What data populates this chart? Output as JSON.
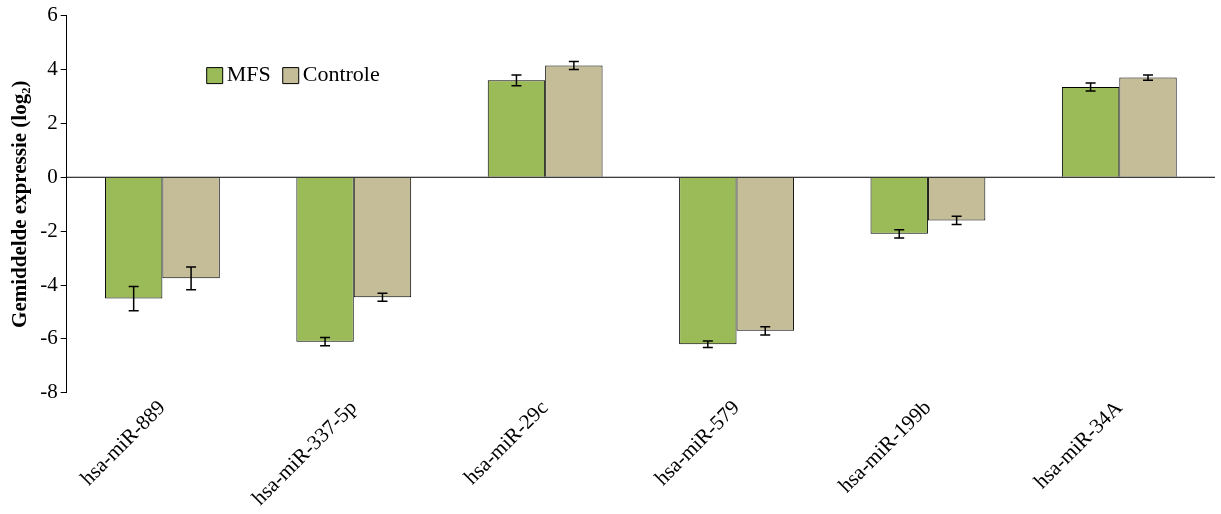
{
  "chart_data": {
    "type": "bar",
    "ylabel": "Gemiddelde expressie (log₂)",
    "categories": [
      "hsa-miR-889",
      "hsa-miR-337-5p",
      "hsa-miR-29c",
      "hsa-miR-579",
      "hsa-miR-199b",
      "hsa-miR-34A"
    ],
    "series": [
      {
        "name": "MFS",
        "color": "#9bbb59",
        "values": [
          -4.5,
          -6.1,
          3.6,
          -6.2,
          -2.1,
          3.35
        ],
        "errors": [
          0.45,
          0.15,
          0.2,
          0.12,
          0.15,
          0.15
        ]
      },
      {
        "name": "Controle",
        "color": "#c4bd97",
        "values": [
          -3.75,
          -4.45,
          4.15,
          -5.7,
          -1.6,
          3.7
        ],
        "errors": [
          0.42,
          0.15,
          0.15,
          0.15,
          0.15,
          0.1
        ]
      }
    ],
    "ylim": [
      -8,
      6
    ],
    "yticks": [
      -8,
      -6,
      -4,
      -2,
      0,
      2,
      4,
      6
    ],
    "ref_lines": [
      {
        "axis": "y",
        "value": 0,
        "color": "#000000"
      }
    ],
    "legend": "top left"
  }
}
